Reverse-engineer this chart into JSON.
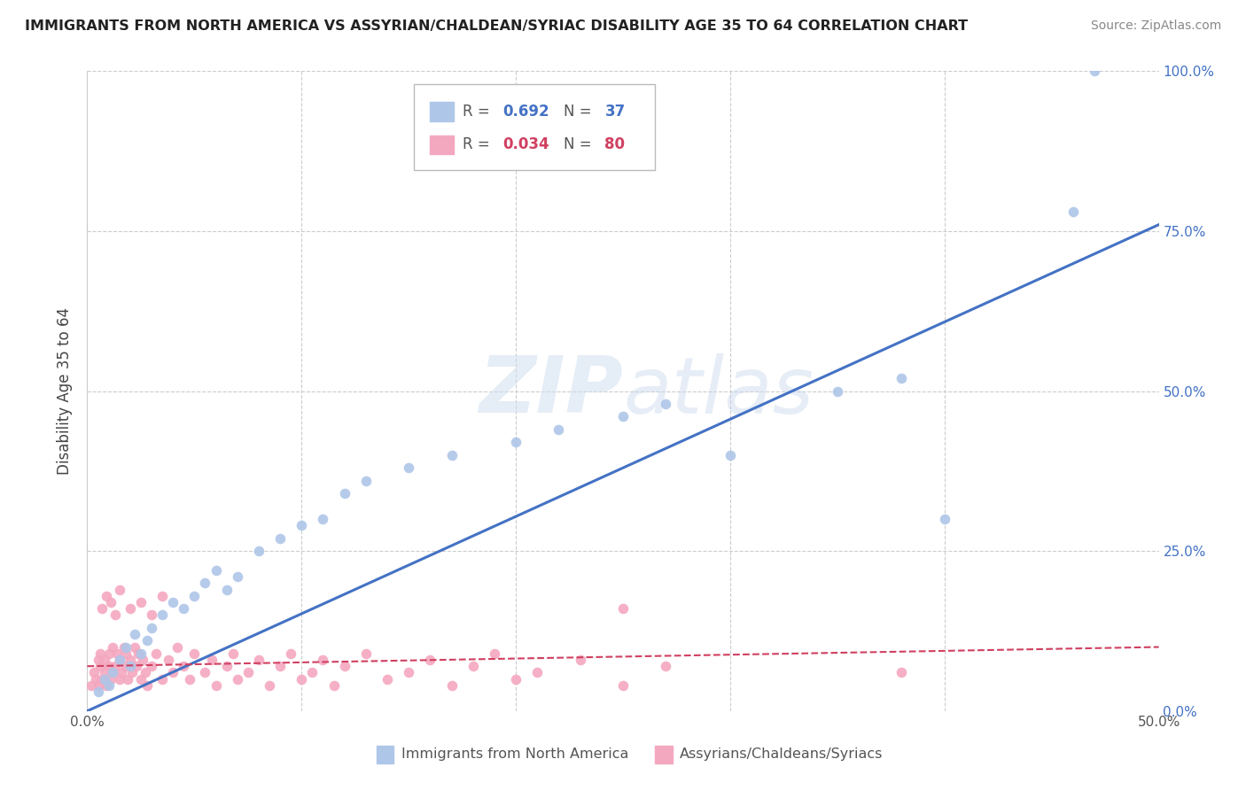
{
  "title": "IMMIGRANTS FROM NORTH AMERICA VS ASSYRIAN/CHALDEAN/SYRIAC DISABILITY AGE 35 TO 64 CORRELATION CHART",
  "source": "Source: ZipAtlas.com",
  "ylabel": "Disability Age 35 to 64",
  "legend_label_blue": "Immigrants from North America",
  "legend_label_pink": "Assyrians/Chaldeans/Syriacs",
  "blue_color": "#aec6e8",
  "blue_line_color": "#4472c4",
  "pink_color": "#f4a8c0",
  "pink_line_color": "#d04060",
  "watermark_color": "#dde8f5",
  "grid_color": "#cccccc",
  "blue_scatter_x": [
    0.005,
    0.008,
    0.01,
    0.012,
    0.015,
    0.018,
    0.02,
    0.022,
    0.025,
    0.028,
    0.03,
    0.035,
    0.04,
    0.045,
    0.05,
    0.055,
    0.06,
    0.065,
    0.07,
    0.08,
    0.09,
    0.1,
    0.11,
    0.12,
    0.13,
    0.15,
    0.17,
    0.2,
    0.22,
    0.25,
    0.27,
    0.3,
    0.35,
    0.38,
    0.4,
    0.46,
    0.47
  ],
  "blue_scatter_y": [
    0.03,
    0.05,
    0.04,
    0.06,
    0.08,
    0.1,
    0.07,
    0.12,
    0.09,
    0.11,
    0.13,
    0.15,
    0.17,
    0.16,
    0.18,
    0.2,
    0.22,
    0.19,
    0.21,
    0.25,
    0.27,
    0.29,
    0.3,
    0.34,
    0.36,
    0.38,
    0.4,
    0.42,
    0.44,
    0.46,
    0.48,
    0.4,
    0.5,
    0.52,
    0.3,
    0.78,
    1.0
  ],
  "pink_scatter_x": [
    0.002,
    0.003,
    0.004,
    0.005,
    0.005,
    0.006,
    0.006,
    0.007,
    0.008,
    0.008,
    0.009,
    0.01,
    0.01,
    0.011,
    0.012,
    0.012,
    0.013,
    0.014,
    0.015,
    0.015,
    0.016,
    0.017,
    0.018,
    0.018,
    0.019,
    0.02,
    0.021,
    0.022,
    0.023,
    0.024,
    0.025,
    0.026,
    0.027,
    0.028,
    0.03,
    0.032,
    0.035,
    0.038,
    0.04,
    0.042,
    0.045,
    0.048,
    0.05,
    0.055,
    0.058,
    0.06,
    0.065,
    0.068,
    0.07,
    0.075,
    0.08,
    0.085,
    0.09,
    0.095,
    0.1,
    0.105,
    0.11,
    0.115,
    0.12,
    0.13,
    0.14,
    0.15,
    0.16,
    0.17,
    0.18,
    0.19,
    0.2,
    0.21,
    0.23,
    0.25,
    0.27,
    0.007,
    0.009,
    0.011,
    0.013,
    0.015,
    0.02,
    0.025,
    0.03,
    0.035,
    0.25,
    0.38
  ],
  "pink_scatter_y": [
    0.04,
    0.06,
    0.05,
    0.08,
    0.04,
    0.07,
    0.09,
    0.05,
    0.06,
    0.08,
    0.04,
    0.07,
    0.09,
    0.05,
    0.06,
    0.1,
    0.07,
    0.09,
    0.05,
    0.08,
    0.06,
    0.1,
    0.07,
    0.09,
    0.05,
    0.08,
    0.06,
    0.1,
    0.07,
    0.09,
    0.05,
    0.08,
    0.06,
    0.04,
    0.07,
    0.09,
    0.05,
    0.08,
    0.06,
    0.1,
    0.07,
    0.05,
    0.09,
    0.06,
    0.08,
    0.04,
    0.07,
    0.09,
    0.05,
    0.06,
    0.08,
    0.04,
    0.07,
    0.09,
    0.05,
    0.06,
    0.08,
    0.04,
    0.07,
    0.09,
    0.05,
    0.06,
    0.08,
    0.04,
    0.07,
    0.09,
    0.05,
    0.06,
    0.08,
    0.04,
    0.07,
    0.16,
    0.18,
    0.17,
    0.15,
    0.19,
    0.16,
    0.17,
    0.15,
    0.18,
    0.16,
    0.06
  ],
  "blue_line_x": [
    0.0,
    0.5
  ],
  "blue_line_y": [
    0.0,
    0.76
  ],
  "pink_line_x": [
    0.0,
    0.5
  ],
  "pink_line_y": [
    0.07,
    0.1
  ],
  "xlim": [
    0.0,
    0.5
  ],
  "ylim": [
    0.0,
    1.0
  ],
  "xtick_labels": [
    "0.0%",
    "",
    "",
    "",
    "",
    "50.0%"
  ],
  "xtick_vals": [
    0.0,
    0.1,
    0.2,
    0.3,
    0.4,
    0.5
  ],
  "ytick_vals": [
    0.0,
    0.25,
    0.5,
    0.75,
    1.0
  ],
  "ytick_labels": [
    "0.0%",
    "25.0%",
    "50.0%",
    "75.0%",
    "100.0%"
  ]
}
